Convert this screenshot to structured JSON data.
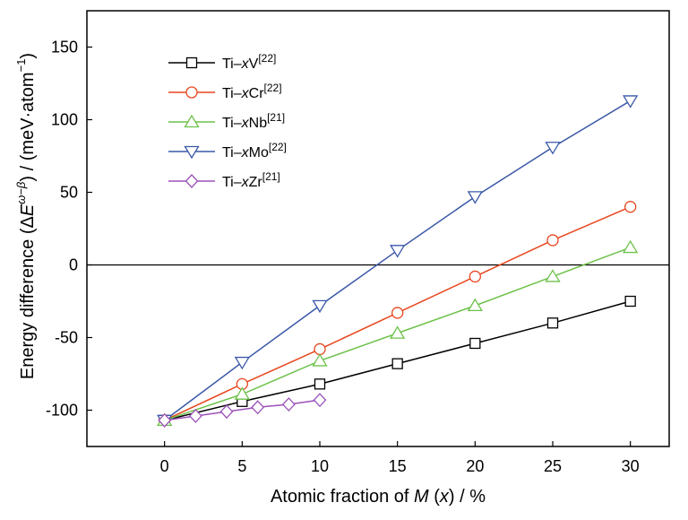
{
  "chart_data": {
    "type": "line",
    "xlabel": "Atomic fraction of M (x) / %",
    "ylabel": "Energy difference (ΔE^{ω−β}) / (meV·atom⁻¹)",
    "xlim": [
      -5,
      32.5
    ],
    "ylim": [
      -125,
      175
    ],
    "x_ticks": [
      0,
      5,
      10,
      15,
      20,
      25,
      30
    ],
    "y_ticks": [
      -100,
      -50,
      0,
      50,
      100,
      150
    ],
    "grid": false,
    "legend_position": "top-left",
    "reference_line_y": 0,
    "series": [
      {
        "name": "Ti–xV[22]",
        "color": "#000000",
        "marker": "square",
        "x": [
          0,
          5,
          10,
          15,
          20,
          25,
          30
        ],
        "y": [
          -107,
          -94,
          -82,
          -68,
          -54,
          -40,
          -25
        ]
      },
      {
        "name": "Ti–xCr[22]",
        "color": "#e8461e",
        "marker": "circle",
        "x": [
          0,
          5,
          10,
          15,
          20,
          25,
          30
        ],
        "y": [
          -107,
          -82,
          -58,
          -33,
          -8,
          17,
          40
        ]
      },
      {
        "name": "Ti–xNb[21]",
        "color": "#6dc24a",
        "marker": "triangle-up",
        "x": [
          0,
          5,
          10,
          15,
          20,
          25,
          30
        ],
        "y": [
          -107,
          -89,
          -66,
          -47,
          -28,
          -8,
          12
        ]
      },
      {
        "name": "Ti–xMo[22]",
        "color": "#3a58a8",
        "marker": "triangle-down",
        "x": [
          0,
          5,
          10,
          15,
          20,
          25,
          30
        ],
        "y": [
          -107,
          -67,
          -28,
          10,
          47,
          81,
          113
        ]
      },
      {
        "name": "Ti–xZr[21]",
        "color": "#9b51b8",
        "marker": "diamond",
        "x": [
          0,
          2,
          4,
          6,
          8,
          10
        ],
        "y": [
          -107,
          -104,
          -101,
          -98,
          -96,
          -93
        ]
      }
    ]
  }
}
